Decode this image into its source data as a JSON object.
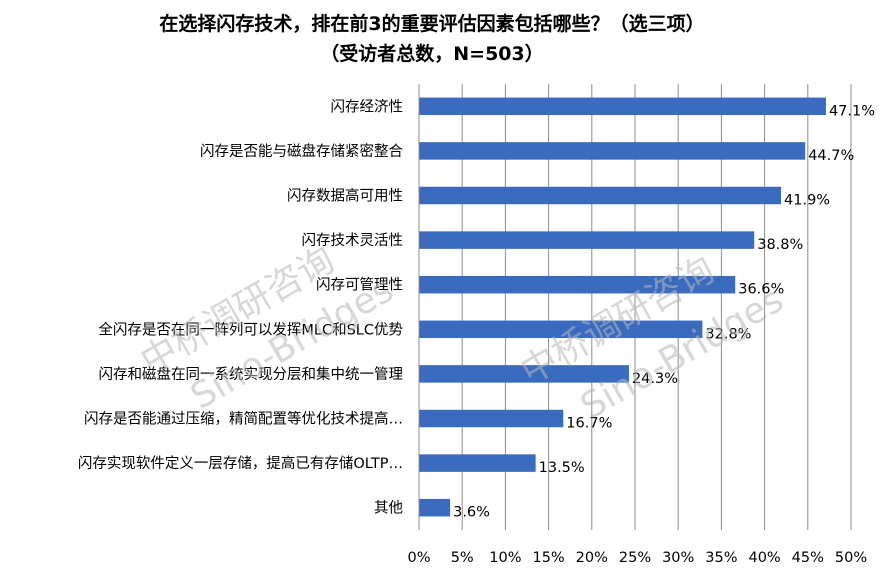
{
  "chart_data": {
    "type": "bar",
    "orientation": "horizontal",
    "title": "在选择闪存技术，排在前3的重要评估因素包括哪些？（选三项）",
    "subtitle": "（受访者总数，N=503）",
    "categories": [
      "闪存经济性",
      "闪存是否能与磁盘存储紧密整合",
      "闪存数据高可用性",
      "闪存技术灵活性",
      "闪存可管理性",
      "全闪存是否在同一阵列可以发挥MLC和SLC优势",
      "闪存和磁盘在同一系统实现分层和集中统一管理",
      "闪存是否能通过压缩，精简配置等优化技术提高…",
      "闪存实现软件定义一层存储，提高已有存储OLTP…",
      "其他"
    ],
    "values": [
      47.1,
      44.7,
      41.9,
      38.8,
      36.6,
      32.8,
      24.3,
      16.7,
      13.5,
      3.6
    ],
    "value_labels": [
      "47.1%",
      "44.7%",
      "41.9%",
      "38.8%",
      "36.6%",
      "32.8%",
      "24.3%",
      "16.7%",
      "13.5%",
      "3.6%"
    ],
    "xlim": [
      0,
      50
    ],
    "x_ticks": [
      "0%",
      "5%",
      "10%",
      "15%",
      "20%",
      "25%",
      "30%",
      "35%",
      "40%",
      "45%",
      "50%"
    ],
    "gridlines": true,
    "legend": "none",
    "bar_color": "#3a6bbf",
    "watermarks": [
      "中桥调研咨询",
      "Sino-Bridges",
      "中桥调研咨询",
      "Sino-Bridges"
    ]
  }
}
